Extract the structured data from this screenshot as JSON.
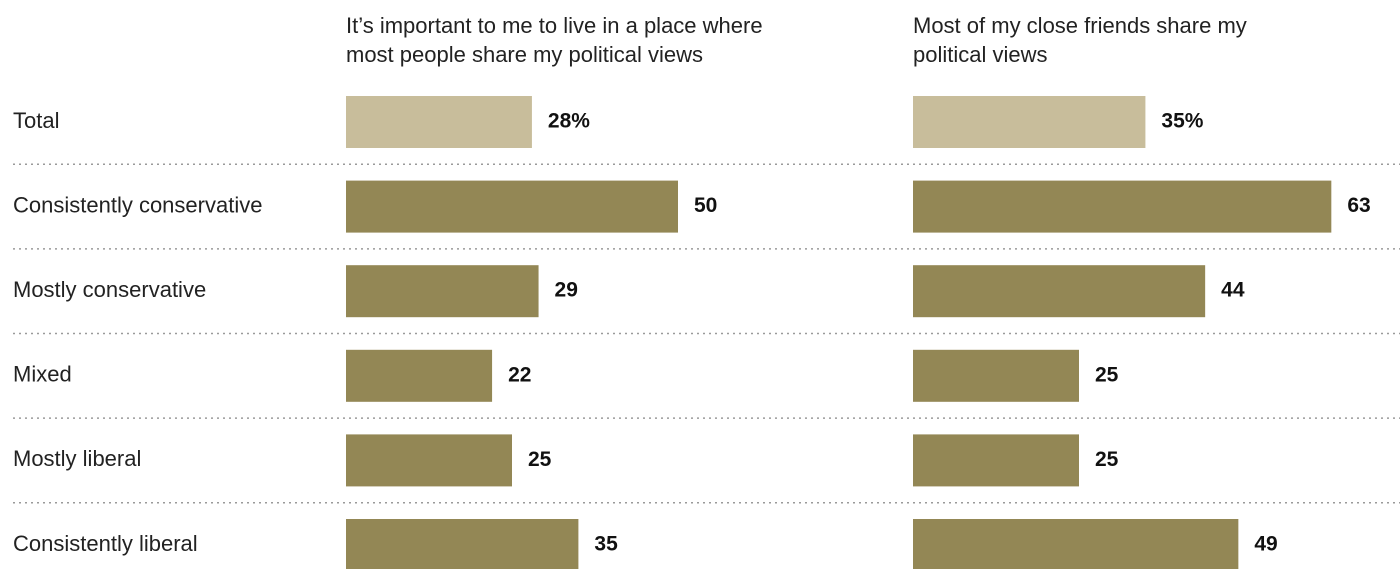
{
  "chart_data": {
    "type": "bar",
    "orientation": "horizontal",
    "categories": [
      "Total",
      "Consistently conservative",
      "Mostly conservative",
      "Mixed",
      "Mostly liberal",
      "Consistently liberal"
    ],
    "series": [
      {
        "name": "It’s important to me to live in a place where most people share my political views",
        "title_lines": [
          "It’s important to me to live in a place where",
          "most people share my political views"
        ],
        "values": [
          28,
          50,
          29,
          22,
          25,
          35
        ],
        "value_labels": [
          "28%",
          "50",
          "29",
          "22",
          "25",
          "35"
        ]
      },
      {
        "name": "Most of my close friends share my political views",
        "title_lines": [
          "Most of my close friends share my",
          "political views"
        ],
        "values": [
          35,
          63,
          44,
          25,
          25,
          49
        ],
        "value_labels": [
          "35%",
          "63",
          "44",
          "25",
          "25",
          "49"
        ]
      }
    ],
    "xlim": [
      0,
      100
    ],
    "grid": false,
    "row_dividers": "dotted",
    "colors": {
      "total": "#c8bd9b",
      "group": "#938755"
    }
  }
}
